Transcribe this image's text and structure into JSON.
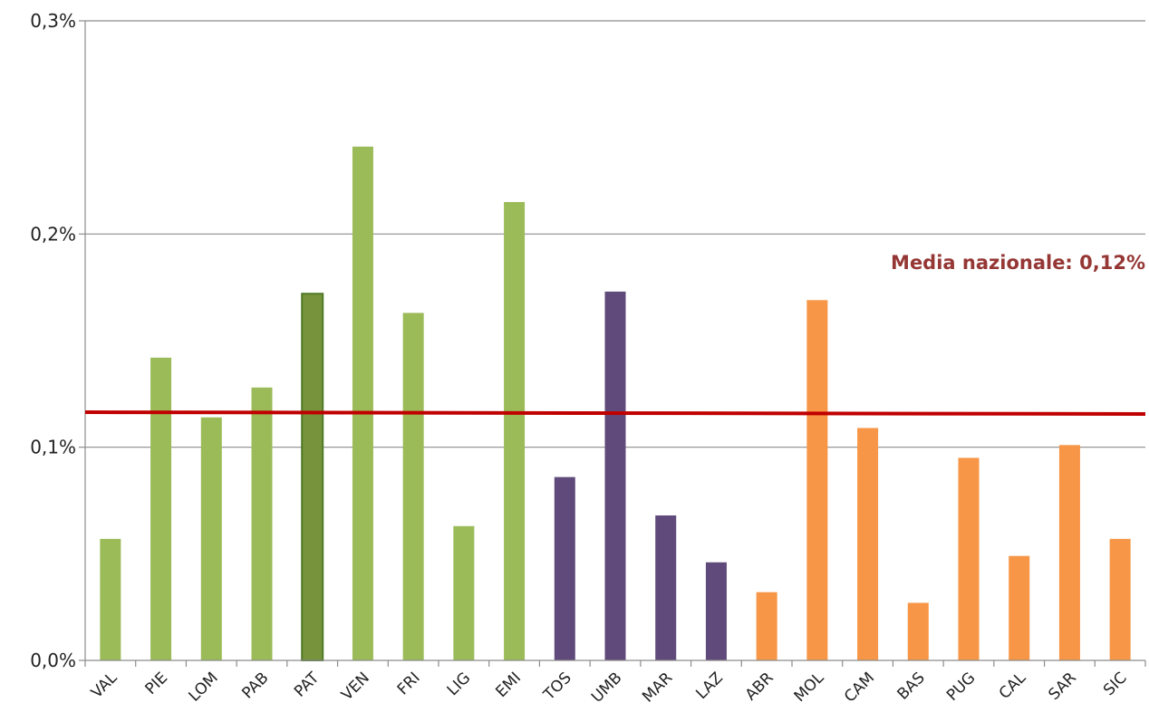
{
  "chart_data": {
    "type": "bar",
    "categories": [
      "VAL",
      "PIE",
      "LOM",
      "PAB",
      "PAT",
      "VEN",
      "FRI",
      "LIG",
      "EMI",
      "TOS",
      "UMB",
      "MAR",
      "LAZ",
      "ABR",
      "MOL",
      "CAM",
      "BAS",
      "PUG",
      "CAL",
      "SAR",
      "SIC"
    ],
    "values": [
      0.057,
      0.142,
      0.114,
      0.128,
      0.172,
      0.241,
      0.163,
      0.063,
      0.215,
      0.086,
      0.173,
      0.068,
      0.046,
      0.032,
      0.169,
      0.109,
      0.027,
      0.095,
      0.049,
      0.101,
      0.057
    ],
    "groups": [
      "north",
      "north",
      "north",
      "north",
      "north",
      "north",
      "north",
      "north",
      "north",
      "centre",
      "centre",
      "centre",
      "centre",
      "south",
      "south",
      "south",
      "south",
      "south",
      "south",
      "south",
      "south"
    ],
    "highlight": "PAT",
    "ylim": [
      0,
      0.3
    ],
    "yticks": [
      0,
      0.1,
      0.2,
      0.3
    ],
    "ytick_labels": [
      "0,0%",
      "0,1%",
      "0,2%",
      "0,3%"
    ],
    "grid": true,
    "average": {
      "value": 0.116,
      "label": "Media nazionale: 0,12%"
    },
    "xlabel": "",
    "ylabel": ""
  },
  "colors": {
    "north": "#9bbb59",
    "centre": "#604a7b",
    "south": "#f79646",
    "highlight_fill": "#77933c",
    "highlight_border": "#4f7a28",
    "average_line": "#c00000",
    "average_label": "#953735",
    "grid": "#8c8c8c"
  }
}
